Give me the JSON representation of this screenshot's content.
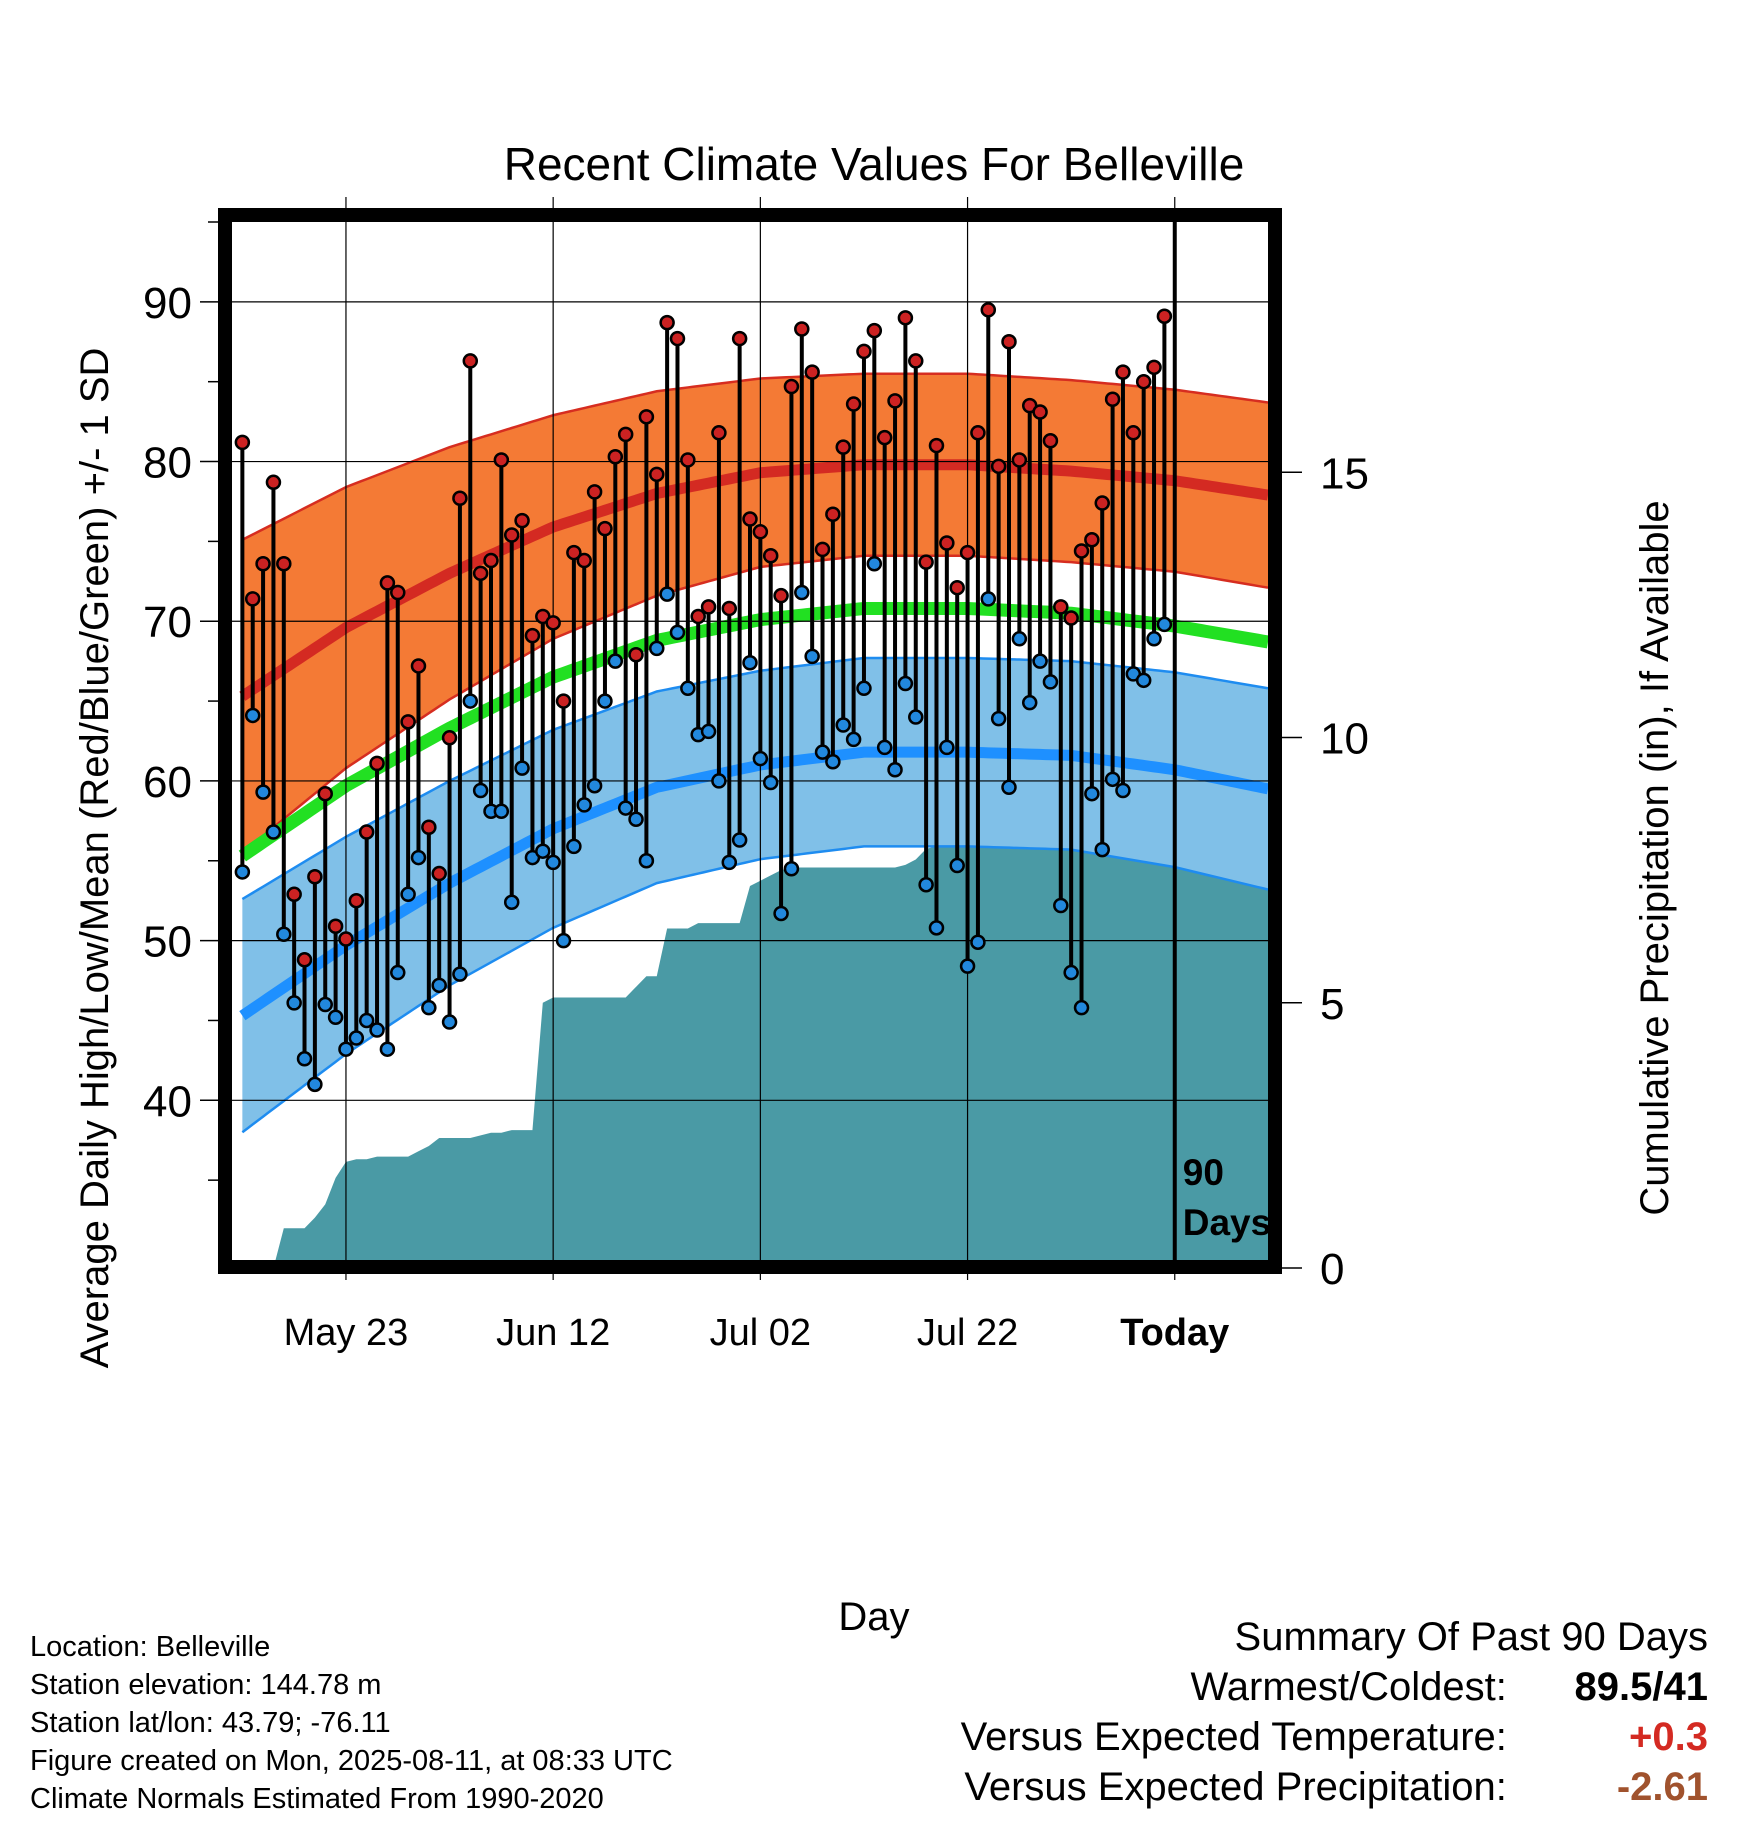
{
  "chart_data": {
    "type": "line",
    "title": "Recent Climate Values For Belleville",
    "xlabel": "Day",
    "ylabel": "Average Daily High/Low/Mean (Red/Blue/Green) +/- 1 SD",
    "y2label": "Cumulative Precipitation (in), If Available",
    "ylim": [
      30,
      95
    ],
    "y2lim": [
      0,
      20
    ],
    "y_ticks": [
      40,
      50,
      60,
      70,
      80,
      90
    ],
    "y2_ticks": [
      0,
      5,
      10,
      15
    ],
    "x_tick_labels": [
      "May 23",
      "Jun 12",
      "Jul 02",
      "Jul 22",
      "Today"
    ],
    "x_tick_days": [
      10,
      30,
      50,
      70,
      90
    ],
    "xlim": [
      -1,
      99
    ],
    "today_label_line1": "90",
    "today_label_line2": "Days",
    "grid": true,
    "colors": {
      "high_band": "#F47A35",
      "high_band_edge": "#D62D20",
      "high_mean": "#D42A22",
      "low_band": "#80C0E8",
      "low_band_edge": "#1E8CF0",
      "low_mean": "#1E90FF",
      "mean_normal": "#22E022",
      "precip": "#4A9AA5",
      "high_dot": "#CC2222",
      "low_dot": "#2288DD"
    },
    "normals": {
      "days": [
        0,
        10,
        20,
        30,
        40,
        50,
        60,
        70,
        80,
        90,
        99
      ],
      "high_mean": [
        65.3,
        69.6,
        73.0,
        75.9,
        78.0,
        79.3,
        79.8,
        79.8,
        79.4,
        78.8,
        77.9
      ],
      "high_sd": [
        9.8,
        8.8,
        7.9,
        7.0,
        6.4,
        5.9,
        5.7,
        5.7,
        5.7,
        5.7,
        5.8
      ],
      "low_mean": [
        45.3,
        49.7,
        53.6,
        57.0,
        59.6,
        61.0,
        61.8,
        61.8,
        61.6,
        60.7,
        59.5
      ],
      "low_sd": [
        7.3,
        6.8,
        6.4,
        6.2,
        6.0,
        5.9,
        5.9,
        5.9,
        5.9,
        6.1,
        6.3
      ],
      "mean": [
        55.3,
        59.7,
        63.3,
        66.5,
        68.8,
        70.1,
        70.8,
        70.8,
        70.5,
        69.7,
        68.7
      ]
    },
    "highs": [
      81.2,
      71.4,
      73.6,
      78.7,
      73.6,
      52.9,
      48.8,
      54.0,
      59.2,
      50.9,
      50.1,
      52.5,
      56.8,
      61.1,
      72.4,
      71.8,
      63.7,
      67.2,
      57.1,
      54.2,
      62.7,
      77.7,
      86.3,
      73.0,
      73.8,
      80.1,
      75.4,
      76.3,
      69.1,
      70.3,
      69.9,
      65.0,
      74.3,
      73.8,
      78.1,
      75.8,
      80.3,
      81.7,
      67.9,
      82.8,
      79.2,
      88.7,
      87.7,
      80.1,
      70.3,
      70.9,
      81.8,
      70.8,
      87.7,
      76.4,
      75.6,
      74.1,
      71.6,
      84.7,
      88.3,
      85.6,
      74.5,
      76.7,
      80.9,
      83.6,
      86.9,
      88.2,
      81.5,
      83.8,
      89.0,
      86.3,
      73.7,
      81.0,
      74.9,
      72.1,
      74.3,
      81.8,
      89.5,
      79.7,
      87.5,
      80.1,
      83.5,
      83.1,
      81.3,
      70.9,
      70.2,
      74.4,
      75.1,
      77.4,
      83.9,
      85.6,
      81.8,
      85.0,
      85.9,
      89.1
    ],
    "lows": [
      54.3,
      64.1,
      59.3,
      56.8,
      50.4,
      46.1,
      42.6,
      41.0,
      46.0,
      45.2,
      43.2,
      43.9,
      45.0,
      44.4,
      43.2,
      48.0,
      52.9,
      55.2,
      45.8,
      47.2,
      44.9,
      47.9,
      65.0,
      59.4,
      58.1,
      58.1,
      52.4,
      60.8,
      55.2,
      55.6,
      54.9,
      50.0,
      55.9,
      58.5,
      59.7,
      65.0,
      67.5,
      58.3,
      57.6,
      55.0,
      68.3,
      71.7,
      69.3,
      65.8,
      62.9,
      63.1,
      60.0,
      54.9,
      56.3,
      67.4,
      61.4,
      59.9,
      51.7,
      54.5,
      71.8,
      67.8,
      61.8,
      61.2,
      63.5,
      62.6,
      65.8,
      73.6,
      62.1,
      60.7,
      66.1,
      64.0,
      53.5,
      50.8,
      62.1,
      54.7,
      48.4,
      49.9,
      71.4,
      63.9,
      59.6,
      68.9,
      64.9,
      67.5,
      66.2,
      52.2,
      48.0,
      45.8,
      59.2,
      55.7,
      60.1,
      59.4,
      66.7,
      66.3,
      68.9,
      69.8
    ],
    "precip_cumulative": {
      "days": [
        0,
        3,
        4,
        5,
        6,
        7,
        8,
        9,
        10,
        11,
        12,
        13,
        14,
        15,
        16,
        17,
        18,
        19,
        20,
        21,
        22,
        23,
        24,
        25,
        26,
        27,
        28,
        29,
        30,
        31,
        32,
        33,
        34,
        35,
        36,
        37,
        38,
        39,
        40,
        41,
        42,
        43,
        44,
        45,
        46,
        47,
        48,
        49,
        50,
        51,
        52,
        53,
        54,
        55,
        56,
        57,
        58,
        59,
        60,
        61,
        62,
        63,
        64,
        65,
        66,
        67,
        68,
        69,
        70,
        71,
        72,
        73,
        74,
        75,
        76,
        77,
        78,
        79,
        80,
        81,
        82,
        83,
        84,
        85,
        86,
        87,
        88,
        89,
        90,
        99
      ],
      "values": [
        0,
        0,
        0.75,
        0.75,
        0.75,
        0.95,
        1.2,
        1.7,
        2.0,
        2.05,
        2.05,
        2.1,
        2.1,
        2.1,
        2.1,
        2.2,
        2.3,
        2.45,
        2.45,
        2.45,
        2.45,
        2.5,
        2.55,
        2.55,
        2.6,
        2.6,
        2.6,
        5.0,
        5.1,
        5.1,
        5.1,
        5.1,
        5.1,
        5.1,
        5.1,
        5.1,
        5.3,
        5.5,
        5.5,
        6.4,
        6.4,
        6.4,
        6.5,
        6.5,
        6.5,
        6.5,
        6.5,
        7.2,
        7.3,
        7.4,
        7.5,
        7.55,
        7.55,
        7.55,
        7.55,
        7.55,
        7.55,
        7.55,
        7.55,
        7.55,
        7.55,
        7.55,
        7.6,
        7.7,
        7.9,
        7.95,
        8.1,
        8.15,
        8.2,
        8.25,
        8.25,
        8.25,
        8.3,
        9.0,
        9.05,
        9.05,
        9.05,
        9.05,
        9.05,
        9.05,
        9.05,
        9.05,
        9.05,
        9.05,
        9.05,
        9.05,
        9.05,
        9.05,
        9.05,
        9.05
      ]
    }
  },
  "meta": {
    "location": "Location: Belleville",
    "elevation": "Station elevation: 144.78 m",
    "latlon": "Station lat/lon: 43.79; -76.11",
    "created": "Figure created on Mon, 2025-08-11, at 08:33 UTC",
    "normals_note": "Climate Normals Estimated From 1990-2020"
  },
  "summary": {
    "title": "Summary Of Past 90 Days",
    "warm_cold_label": "Warmest/Coldest:",
    "warm_cold_value": "89.5/41",
    "temp_label": "Versus Expected Temperature:",
    "temp_value": "+0.3",
    "temp_color": "#D42A22",
    "precip_label": "Versus Expected Precipitation:",
    "precip_value": "-2.61",
    "precip_color": "#A0522D"
  }
}
